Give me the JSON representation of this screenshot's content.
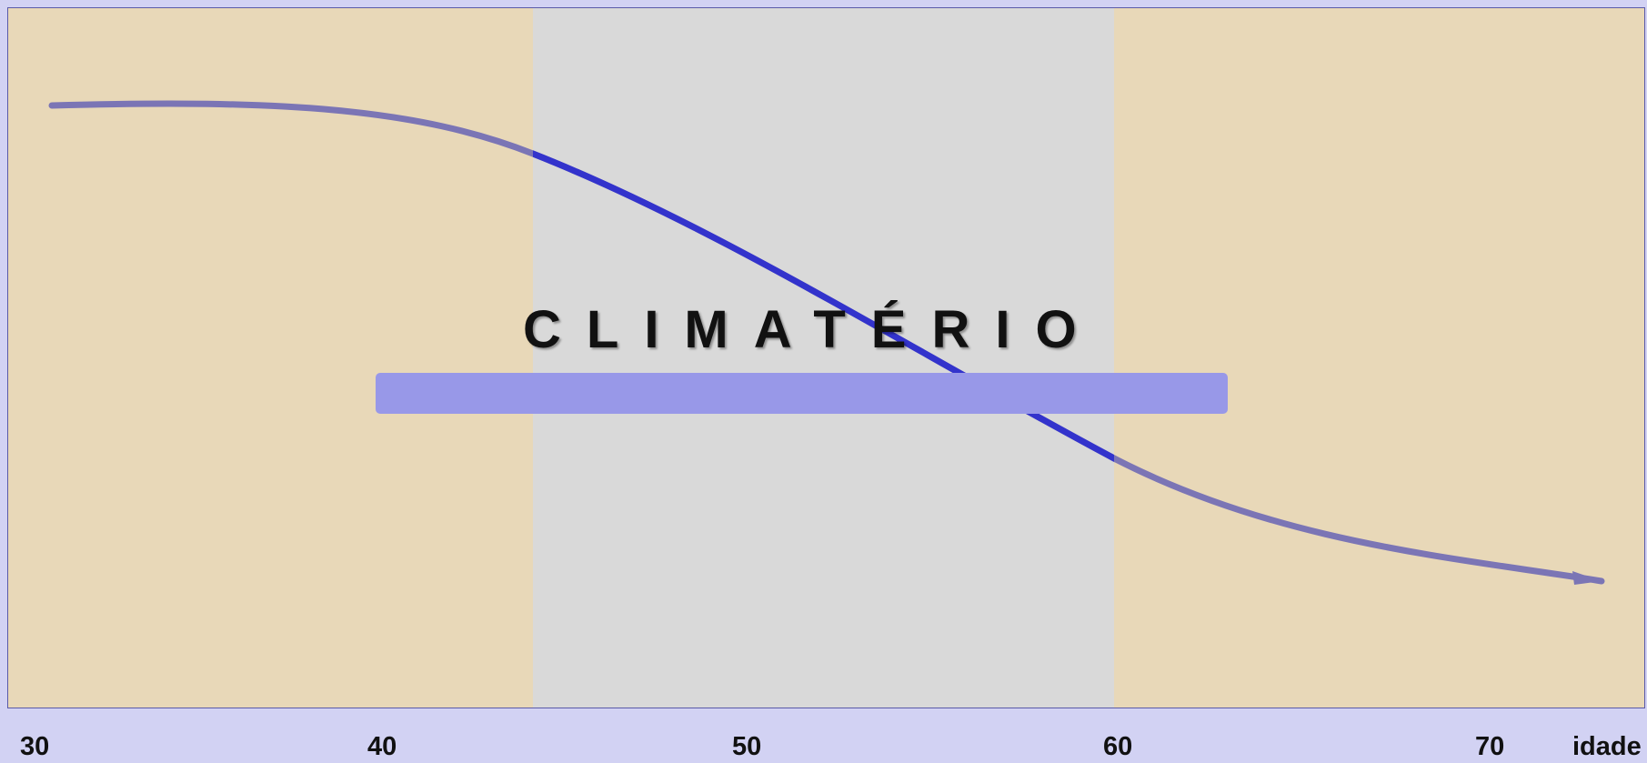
{
  "diagram": {
    "title": "CLIMATÉRIO",
    "x_axis": {
      "ticks": [
        "30",
        "40",
        "50",
        "60",
        "70"
      ],
      "label": "idade"
    },
    "colors": {
      "background": "#d2d2f3",
      "outer_zone": "#e8d8b8",
      "climacteric_zone": "#d9d9d9",
      "band": "#9898e8",
      "curve_outer": "#7b75b5",
      "curve_inner": "#3333cc"
    }
  }
}
